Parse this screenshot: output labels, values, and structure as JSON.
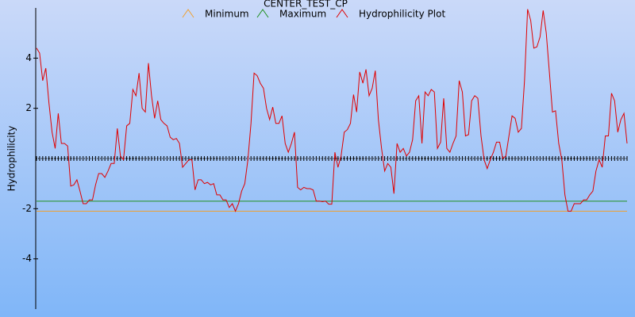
{
  "chart_data": {
    "type": "line",
    "title": "CENTER_TEST_CP",
    "y_label": "Hydrophilicity",
    "ylim": [
      -6,
      6
    ],
    "yticks": [
      -4,
      -2,
      2,
      4
    ],
    "series": [
      {
        "name": "Minimum",
        "color": "#f0a030",
        "values": [
          -2.1
        ]
      },
      {
        "name": "Maximum",
        "color": "#209020",
        "values": [
          -1.7
        ]
      },
      {
        "name": "Hydrophilicity Plot",
        "color": "#e00000",
        "values": [
          4.4,
          4.2,
          3.1,
          3.6,
          2.2,
          1.05,
          0.4,
          1.8,
          0.6,
          0.6,
          0.5,
          -1.1,
          -1.05,
          -0.85,
          -1.3,
          -1.8,
          -1.8,
          -1.65,
          -1.65,
          -1.05,
          -0.6,
          -0.6,
          -0.75,
          -0.5,
          -0.2,
          -0.2,
          1.2,
          0.1,
          -0.05,
          1.3,
          1.4,
          2.75,
          2.5,
          3.4,
          2.0,
          1.85,
          3.8,
          2.5,
          1.6,
          2.3,
          1.55,
          1.4,
          1.3,
          0.85,
          0.75,
          0.8,
          0.6,
          -0.35,
          -0.2,
          -0.05,
          -0.05,
          -1.25,
          -0.85,
          -0.85,
          -1.0,
          -0.95,
          -1.05,
          -1.0,
          -1.45,
          -1.45,
          -1.65,
          -1.65,
          -1.95,
          -1.8,
          -2.1,
          -1.8,
          -1.3,
          -1.0,
          -0.05,
          1.4,
          3.4,
          3.3,
          3.0,
          2.8,
          2.0,
          1.55,
          2.05,
          1.4,
          1.4,
          1.7,
          0.6,
          0.25,
          0.6,
          1.05,
          -1.15,
          -1.25,
          -1.15,
          -1.2,
          -1.2,
          -1.25,
          -1.7,
          -1.7,
          -1.72,
          -1.7,
          -1.82,
          -1.82,
          0.25,
          -0.35,
          0.1,
          1.05,
          1.15,
          1.4,
          2.55,
          1.85,
          3.45,
          3.0,
          3.55,
          2.5,
          2.8,
          3.5,
          1.55,
          0.4,
          -0.5,
          -0.2,
          -0.35,
          -1.4,
          0.6,
          0.25,
          0.4,
          0.1,
          0.25,
          0.75,
          2.3,
          2.5,
          0.6,
          2.65,
          2.5,
          2.75,
          2.65,
          0.4,
          0.65,
          2.4,
          0.4,
          0.25,
          0.6,
          0.9,
          3.1,
          2.65,
          0.9,
          0.95,
          2.3,
          2.5,
          2.4,
          0.9,
          -0.05,
          -0.4,
          -0.05,
          0.25,
          0.65,
          0.65,
          0,
          0.1,
          0.9,
          1.7,
          1.6,
          1.05,
          1.2,
          3.1,
          5.95,
          5.5,
          4.4,
          4.45,
          4.85,
          5.9,
          5.0,
          3.45,
          1.85,
          1.9,
          0.6,
          -0.05,
          -1.45,
          -2.1,
          -2.1,
          -1.8,
          -1.8,
          -1.8,
          -1.65,
          -1.65,
          -1.45,
          -1.3,
          -0.5,
          -0.05,
          -0.35,
          0.9,
          0.9,
          2.6,
          2.3,
          1.05,
          1.55,
          1.8,
          0.6
        ]
      }
    ]
  }
}
